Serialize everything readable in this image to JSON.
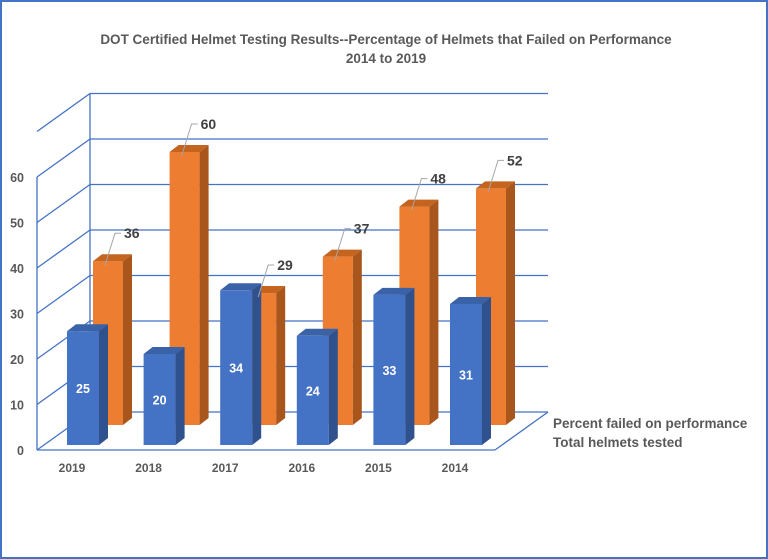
{
  "chart_data": {
    "type": "bar",
    "style": "3d-clustered-column",
    "title": "DOT Certified Helmet Testing Results--Percentage of Helmets that Failed on Performance",
    "subtitle": "2014 to 2019",
    "categories": [
      "2019",
      "2018",
      "2017",
      "2016",
      "2015",
      "2014"
    ],
    "series": [
      {
        "name": "Total helmets tested",
        "values": [
          25,
          20,
          34,
          24,
          33,
          31
        ],
        "color": "#4472c4"
      },
      {
        "name": "Percent failed on performance",
        "values": [
          36,
          60,
          29,
          37,
          48,
          52
        ],
        "color": "#ed7d31"
      }
    ],
    "yticks": [
      "0",
      "10",
      "20",
      "30",
      "40",
      "50",
      "60"
    ],
    "ylim": [
      0,
      70
    ],
    "grid": true,
    "gridline_color": "#4472c4",
    "legend": "right (series axis labels)"
  }
}
